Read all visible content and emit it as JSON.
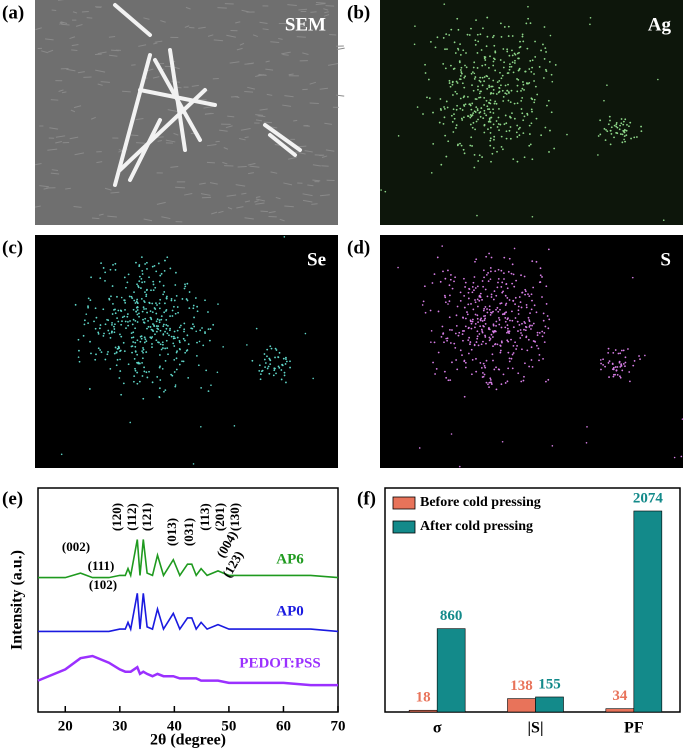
{
  "panels": [
    {
      "label": "(a)",
      "title": "SEM"
    },
    {
      "label": "(b)",
      "title": "Ag"
    },
    {
      "label": "(c)",
      "title": "Se"
    },
    {
      "label": "(d)",
      "title": "S"
    }
  ],
  "chart_data": [
    {
      "type": "line",
      "label": "(e)",
      "x_label": "2θ (degree)",
      "y_label": "Intensity (a.u.)",
      "xlim": [
        15,
        70
      ],
      "xticks": [
        20,
        30,
        40,
        50,
        60,
        70
      ],
      "ylim": [
        0,
        100
      ],
      "x": [
        15,
        20,
        22.8,
        25,
        28,
        30,
        31,
        31.5,
        32,
        33.2,
        33.7,
        34.3,
        35,
        36,
        36.9,
        38,
        39.8,
        41,
        42.4,
        43.2,
        44,
        44.9,
        46,
        48,
        50,
        55,
        60,
        65,
        70
      ],
      "series": [
        {
          "name": "AP6",
          "color": "#1f9a1f",
          "values": [
            60,
            60,
            62,
            60,
            60,
            61,
            61,
            64,
            61,
            77,
            61,
            77,
            62,
            61,
            70,
            61,
            68,
            61,
            66,
            66,
            61,
            64,
            61,
            63,
            61,
            61,
            61,
            61,
            60
          ]
        },
        {
          "name": "AP0",
          "color": "#1a1ae0",
          "values": [
            36,
            36,
            36,
            36,
            36,
            37,
            37,
            40,
            37,
            53,
            37,
            53,
            38,
            37,
            46,
            37,
            44,
            37,
            42,
            42,
            37,
            40,
            37,
            39,
            37,
            37,
            37,
            37,
            36
          ]
        },
        {
          "name": "PEDOT:PSS",
          "color": "#9b30ff",
          "values": [
            14,
            19,
            24,
            25,
            22,
            19,
            18,
            18,
            18,
            20,
            17,
            18,
            17,
            16,
            17,
            16,
            16,
            15,
            15,
            15,
            15,
            14,
            14,
            14,
            13,
            13,
            13,
            12,
            12
          ]
        }
      ],
      "annotations": [
        "(002)",
        "(111)",
        "(102)",
        "(120)",
        "(112)",
        "(121)",
        "(013)",
        "(031)",
        "(113)",
        "(201)",
        "(130)",
        "(004)",
        "(123)"
      ]
    },
    {
      "type": "bar",
      "label": "(f)",
      "categories": [
        "σ",
        "|S|",
        "PF"
      ],
      "series": [
        {
          "name": "Before cold pressing",
          "color": "#e8735a",
          "values": [
            18,
            138,
            34
          ]
        },
        {
          "name": "After cold pressing",
          "color": "#138a8a",
          "values": [
            860,
            155,
            2074
          ]
        }
      ]
    }
  ]
}
